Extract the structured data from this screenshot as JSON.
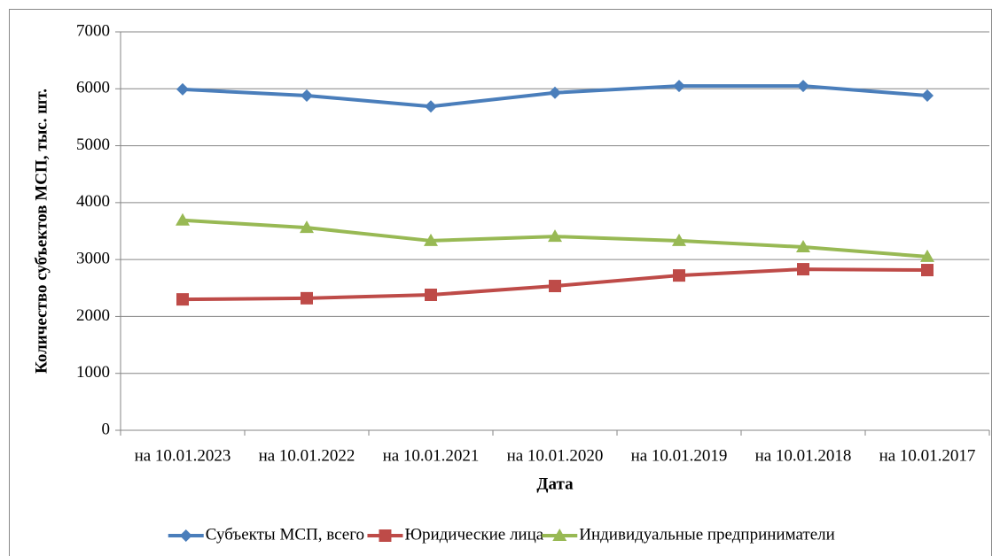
{
  "chart_data": {
    "type": "line",
    "xlabel": "Дата",
    "ylabel": "Количество субъектов МСП, тыс. шт.",
    "categories": [
      "на 10.01.2023",
      "на 10.01.2022",
      "на 10.01.2021",
      "на 10.01.2020",
      "на 10.01.2019",
      "на 10.01.2018",
      "на 10.01.2017"
    ],
    "series": [
      {
        "name": "Субъекты МСП, всего",
        "color": "#4a7ebb",
        "marker": "diamond",
        "values": [
          5990,
          5880,
          5690,
          5930,
          6050,
          6050,
          5880
        ]
      },
      {
        "name": "Юридические лица",
        "color": "#be4b48",
        "marker": "square",
        "values": [
          2300,
          2320,
          2380,
          2535,
          2720,
          2830,
          2815
        ]
      },
      {
        "name": "Индивидуальные предприниматели",
        "color": "#98b954",
        "marker": "triangle",
        "values": [
          3690,
          3560,
          3330,
          3405,
          3330,
          3220,
          3050
        ]
      }
    ],
    "ylim": [
      0,
      7000
    ],
    "yticks": [
      0,
      1000,
      2000,
      3000,
      4000,
      5000,
      6000,
      7000
    ],
    "grid": true,
    "legend": "bottom"
  }
}
